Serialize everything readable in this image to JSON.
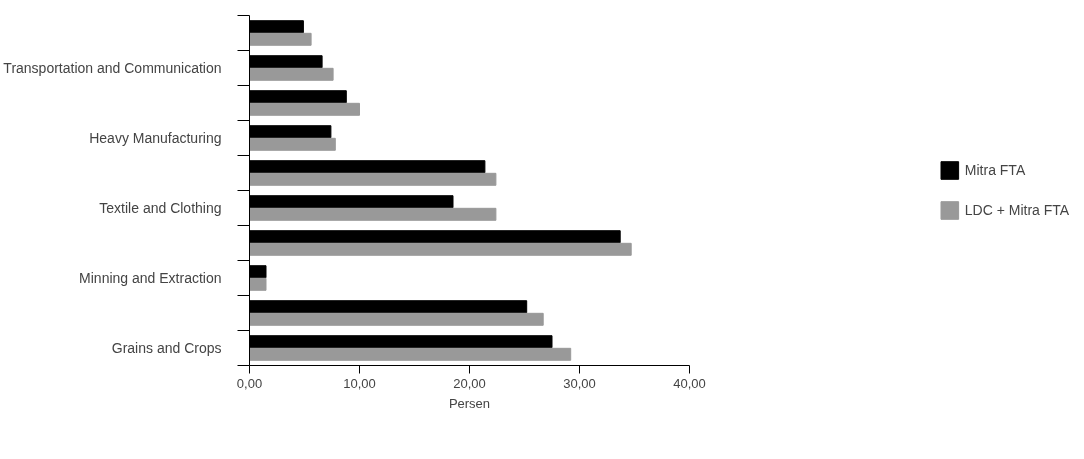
{
  "chart_data": {
    "type": "bar",
    "orientation": "horizontal",
    "xlabel": "Persen",
    "categories": [
      null,
      "Transportation and Communication",
      null,
      "Heavy Manufacturing",
      null,
      "Textile and Clothing",
      null,
      "Minning and Extraction",
      null,
      "Grains and Crops"
    ],
    "series": [
      {
        "name": "Mitra FTA",
        "color": "#000000",
        "values": [
          4.9,
          6.6,
          8.8,
          7.4,
          21.4,
          18.5,
          33.7,
          1.5,
          25.2,
          27.5
        ]
      },
      {
        "name": "LDC + Mitra FTA",
        "color": "#999999",
        "values": [
          5.6,
          7.6,
          10.0,
          7.8,
          22.4,
          22.4,
          34.7,
          1.5,
          26.7,
          29.2
        ]
      }
    ],
    "xlim": [
      0,
      40
    ],
    "xticks": [
      {
        "value": 0,
        "label": "0,00"
      },
      {
        "value": 10,
        "label": "10,00"
      },
      {
        "value": 20,
        "label": "20,00"
      },
      {
        "value": 30,
        "label": "30,00"
      },
      {
        "value": 40,
        "label": "40,00"
      }
    ],
    "grid": false,
    "legend": "right"
  }
}
